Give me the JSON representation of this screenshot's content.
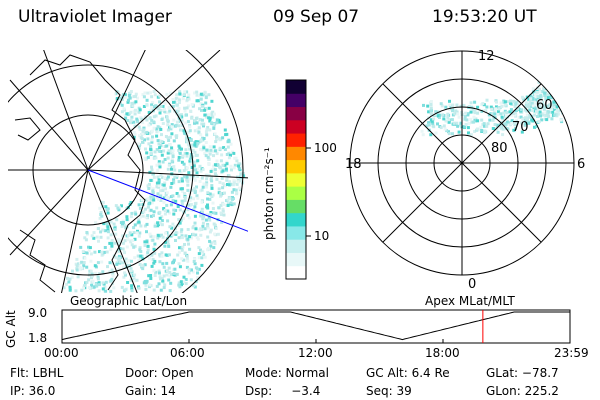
{
  "header": {
    "instrument": "Ultraviolet Imager",
    "date": "09 Sep 07",
    "time": "19:53:20 UT"
  },
  "colorbar": {
    "unit_label": "photon cm⁻²s⁻¹",
    "ticks": [
      {
        "label": "100",
        "value": 100
      },
      {
        "label": "10",
        "value": 10
      }
    ],
    "colors": [
      "#ffffff",
      "#e8f8f8",
      "#c8f0f0",
      "#88e8e8",
      "#33d6cc",
      "#66dd66",
      "#aaff44",
      "#eeff33",
      "#ffcc00",
      "#ff8800",
      "#ff2200",
      "#cc0022",
      "#880044",
      "#440066",
      "#110033"
    ]
  },
  "left_panel": {
    "projection_label": "Geographic Lat/Lon"
  },
  "right_panel": {
    "projection_label": "Apex MLat/MLT",
    "mlt_labels": {
      "top": "12",
      "bottom": "0",
      "left": "18",
      "right": "6"
    },
    "lat_labels": [
      "60",
      "70",
      "80"
    ]
  },
  "altitude_plot": {
    "ylabel": "GC Alt",
    "yticks": [
      "9.0",
      "1.8"
    ],
    "xticks": [
      "00:00",
      "06:00",
      "12:00",
      "18:00",
      "23:59"
    ],
    "marker_time": "19:53",
    "marker_color": "#ff0000"
  },
  "info": {
    "row1": [
      "Flt: LBHL",
      "Door: Open",
      "Mode: Normal",
      "GC Alt: 6.4 Re",
      "GLat: −78.7"
    ],
    "row2": [
      "IP: 36.0",
      "Gain: 14",
      "Dsp:     −3.4",
      "Seq: 39",
      "GLon: 225.2"
    ]
  }
}
